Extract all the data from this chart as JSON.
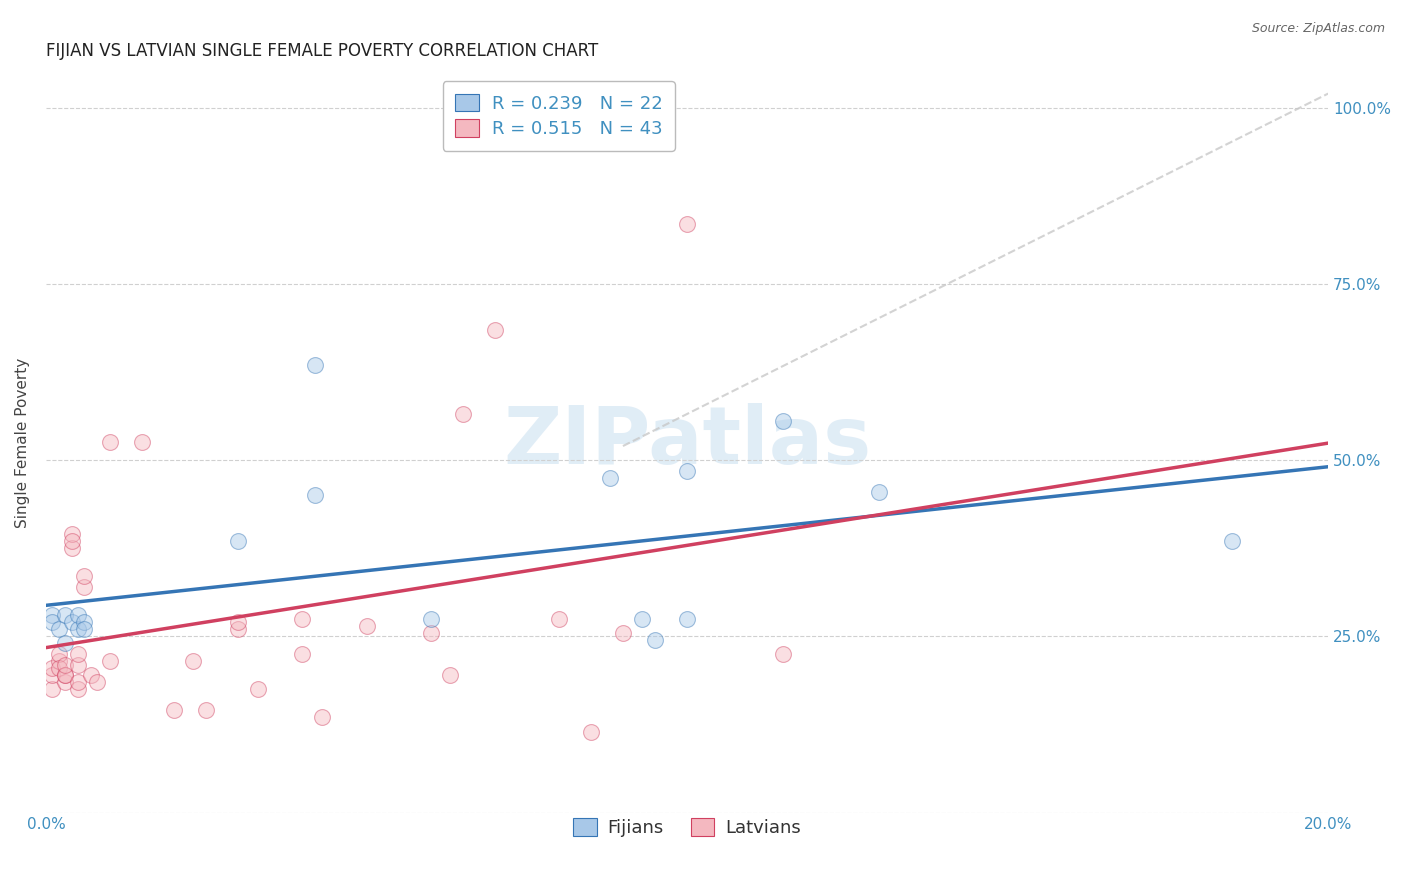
{
  "title": "FIJIAN VS LATVIAN SINGLE FEMALE POVERTY CORRELATION CHART",
  "source": "Source: ZipAtlas.com",
  "ylabel": "Single Female Poverty",
  "watermark": "ZIPatlas",
  "legend_line1": "R = 0.239   N = 22",
  "legend_line2": "R = 0.515   N = 43",
  "fijian_color": "#a8c8e8",
  "latvian_color": "#f4b8c0",
  "fijian_line_color": "#3575b5",
  "latvian_line_color": "#d04060",
  "diagonal_color": "#c8c8c8",
  "grid_color": "#d0d0d0",
  "title_color": "#222222",
  "axis_label_color": "#444444",
  "right_axis_color": "#4090c0",
  "xlim": [
    0.0,
    0.2
  ],
  "ylim": [
    0.0,
    1.05
  ],
  "yticks": [
    0.0,
    0.25,
    0.5,
    0.75,
    1.0
  ],
  "ytick_labels": [
    "",
    "25.0%",
    "50.0%",
    "75.0%",
    "100.0%"
  ],
  "fijian_x": [
    0.001,
    0.001,
    0.002,
    0.003,
    0.003,
    0.004,
    0.005,
    0.005,
    0.006,
    0.006,
    0.03,
    0.042,
    0.042,
    0.06,
    0.088,
    0.093,
    0.1,
    0.115,
    0.13,
    0.1,
    0.185,
    0.095
  ],
  "fijian_y": [
    0.28,
    0.27,
    0.26,
    0.24,
    0.28,
    0.27,
    0.26,
    0.28,
    0.27,
    0.26,
    0.385,
    0.635,
    0.45,
    0.275,
    0.475,
    0.275,
    0.275,
    0.555,
    0.455,
    0.485,
    0.385,
    0.245
  ],
  "latvian_x": [
    0.001,
    0.001,
    0.001,
    0.002,
    0.002,
    0.002,
    0.003,
    0.003,
    0.003,
    0.003,
    0.004,
    0.004,
    0.004,
    0.005,
    0.005,
    0.005,
    0.005,
    0.006,
    0.006,
    0.007,
    0.008,
    0.01,
    0.01,
    0.015,
    0.02,
    0.023,
    0.025,
    0.03,
    0.03,
    0.033,
    0.04,
    0.04,
    0.043,
    0.05,
    0.06,
    0.063,
    0.065,
    0.07,
    0.08,
    0.085,
    0.09,
    0.1,
    0.115
  ],
  "latvian_y": [
    0.175,
    0.195,
    0.205,
    0.215,
    0.225,
    0.205,
    0.185,
    0.195,
    0.195,
    0.21,
    0.375,
    0.395,
    0.385,
    0.175,
    0.185,
    0.21,
    0.225,
    0.32,
    0.335,
    0.195,
    0.185,
    0.215,
    0.525,
    0.525,
    0.145,
    0.215,
    0.145,
    0.26,
    0.27,
    0.175,
    0.225,
    0.275,
    0.135,
    0.265,
    0.255,
    0.195,
    0.565,
    0.685,
    0.275,
    0.115,
    0.255,
    0.835,
    0.225
  ],
  "fijian_R": 0.239,
  "fijian_N": 22,
  "latvian_R": 0.515,
  "latvian_N": 43,
  "marker_size": 130,
  "marker_alpha": 0.45,
  "title_fontsize": 12,
  "label_fontsize": 11,
  "tick_fontsize": 11,
  "legend_fontsize": 13
}
